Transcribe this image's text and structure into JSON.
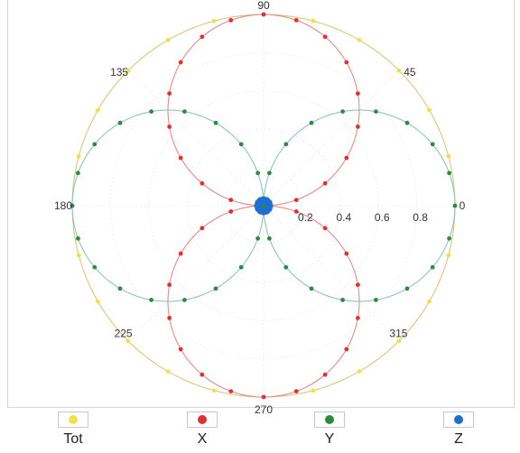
{
  "chart_data": {
    "type": "scatter",
    "coordinate_system": "polar",
    "radial_range": [
      0,
      1
    ],
    "radial_tick_labels": [
      "0.2",
      "0.4",
      "0.6",
      "0.8"
    ],
    "radial_ticks": [
      0.2,
      0.4,
      0.6,
      0.8
    ],
    "angular_tick_labels": [
      "0",
      "45",
      "90",
      "135",
      "180",
      "225",
      "270",
      "315"
    ],
    "angular_ticks_deg": [
      0,
      45,
      90,
      135,
      180,
      225,
      270,
      315
    ],
    "grid": true,
    "legend_position": "bottom",
    "series": [
      {
        "name": "Tot",
        "color": "#f2e04a",
        "line_color": "#d9c87a",
        "pattern": "constant",
        "amplitude": 1.0,
        "point_step_deg": 15
      },
      {
        "name": "X",
        "color": "#e03030",
        "line_color": "#e58a8a",
        "pattern": "abs_sin",
        "amplitude": 1.0,
        "point_step_deg": 10
      },
      {
        "name": "Y",
        "color": "#2e8b3a",
        "line_color": "#8cc6c0",
        "pattern": "abs_cos",
        "amplitude": 1.0,
        "point_step_deg": 10
      },
      {
        "name": "Z",
        "color": "#1f6fd1",
        "line_color": "#1f6fd1",
        "pattern": "constant",
        "amplitude": 0.03,
        "point_step_deg": 30
      }
    ]
  },
  "legend": {
    "items": [
      {
        "label": "Tot",
        "color": "#f2e04a"
      },
      {
        "label": "X",
        "color": "#e03030"
      },
      {
        "label": "Y",
        "color": "#2e8b3a"
      },
      {
        "label": "Z",
        "color": "#1f6fd1"
      }
    ]
  }
}
